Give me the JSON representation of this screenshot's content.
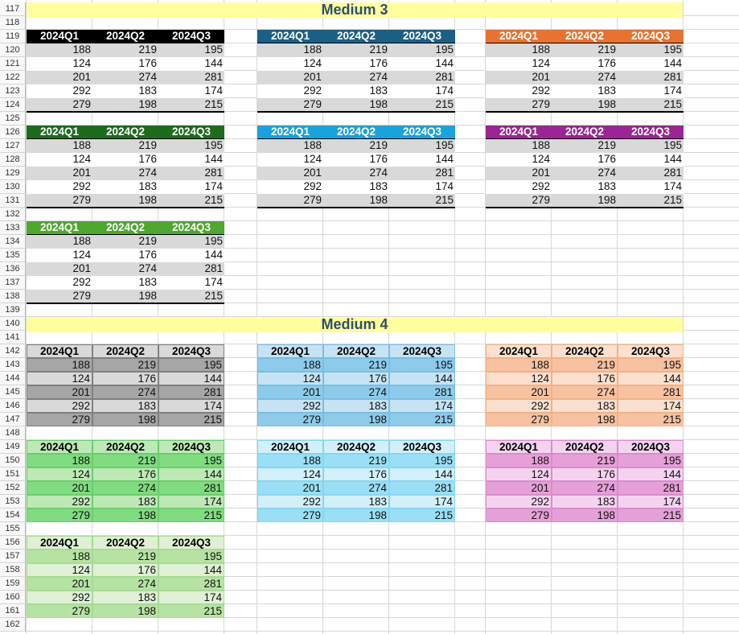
{
  "sheet": {
    "first_row": 117,
    "last_row": 162,
    "sections": [
      {
        "row": 117,
        "title": "Medium 3"
      },
      {
        "row": 140,
        "title": "Medium 4"
      }
    ],
    "headers": [
      "2024Q1",
      "2024Q2",
      "2024Q3"
    ],
    "values": [
      [
        188,
        219,
        195
      ],
      [
        124,
        176,
        144
      ],
      [
        201,
        274,
        281
      ],
      [
        292,
        183,
        174
      ],
      [
        279,
        198,
        215
      ]
    ],
    "tables": [
      {
        "style": "medium3",
        "header_row": 119,
        "col": 0,
        "header_bg": "#000000",
        "header_fg": "#ffffff",
        "band_bg": "#d9d9d9",
        "rule": "#000000"
      },
      {
        "style": "medium3",
        "header_row": 119,
        "col": 1,
        "header_bg": "#1c5f85",
        "header_fg": "#ffffff",
        "band_bg": "#d9d9d9",
        "rule": "#000000"
      },
      {
        "style": "medium3",
        "header_row": 119,
        "col": 2,
        "header_bg": "#e87330",
        "header_fg": "#ffffff",
        "band_bg": "#d9d9d9",
        "rule": "#000000"
      },
      {
        "style": "medium3",
        "header_row": 126,
        "col": 0,
        "header_bg": "#1d6b1d",
        "header_fg": "#ffffff",
        "band_bg": "#d9d9d9",
        "rule": "#000000"
      },
      {
        "style": "medium3",
        "header_row": 126,
        "col": 1,
        "header_bg": "#1aa2dc",
        "header_fg": "#ffffff",
        "band_bg": "#d9d9d9",
        "rule": "#000000"
      },
      {
        "style": "medium3",
        "header_row": 126,
        "col": 2,
        "header_bg": "#9b2594",
        "header_fg": "#ffffff",
        "band_bg": "#d9d9d9",
        "rule": "#000000"
      },
      {
        "style": "medium3",
        "header_row": 133,
        "col": 0,
        "header_bg": "#4ea72e",
        "header_fg": "#ffffff",
        "band_bg": "#d9d9d9",
        "rule": "#000000"
      },
      {
        "style": "medium4",
        "header_row": 142,
        "col": 0,
        "header_bg": "#d9d9d9",
        "header_fg": "#000000",
        "band_a": "#a6a6a6",
        "band_b": "#d9d9d9",
        "grid": "#7f7f7f"
      },
      {
        "style": "medium4",
        "header_row": 142,
        "col": 1,
        "header_bg": "#c6e3f4",
        "header_fg": "#000000",
        "band_a": "#8ecbea",
        "band_b": "#c6e3f4",
        "grid": "#79bde6"
      },
      {
        "style": "medium4",
        "header_row": 142,
        "col": 2,
        "header_bg": "#fbe0cf",
        "header_fg": "#000000",
        "band_a": "#f6c2a2",
        "band_b": "#fbe0cf",
        "grid": "#f4b183"
      },
      {
        "style": "medium4",
        "header_row": 149,
        "col": 0,
        "header_bg": "#bde9b5",
        "header_fg": "#000000",
        "band_a": "#7fdc80",
        "band_b": "#bde9b5",
        "grid": "#6ccc6f"
      },
      {
        "style": "medium4",
        "header_row": 149,
        "col": 1,
        "header_bg": "#d2f0fa",
        "header_fg": "#000000",
        "band_a": "#9adff5",
        "band_b": "#d2f0fa",
        "grid": "#86d6f1"
      },
      {
        "style": "medium4",
        "header_row": 149,
        "col": 2,
        "header_bg": "#f5d3f0",
        "header_fg": "#000000",
        "band_a": "#e6a0d8",
        "band_b": "#f5d3f0",
        "grid": "#d98ccb"
      },
      {
        "style": "medium4",
        "header_row": 156,
        "col": 0,
        "header_bg": "#dff0d4",
        "header_fg": "#000000",
        "band_a": "#b6e3a2",
        "band_b": "#dff0d4",
        "grid": "#a9d998"
      }
    ]
  }
}
